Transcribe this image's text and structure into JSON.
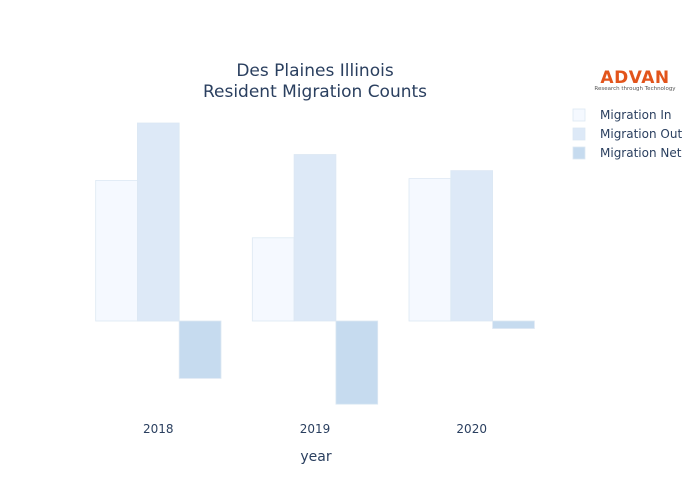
{
  "chart_data": {
    "type": "bar",
    "title_line1": "Des Plaines Illinois",
    "title_line2": "Resident Migration Counts",
    "xlabel": "year",
    "ylabel": "",
    "categories": [
      "2018",
      "2019",
      "2020"
    ],
    "series": [
      {
        "name": "Migration In",
        "color": "#f5f9ff",
        "values": [
          2450,
          1450,
          2480
        ]
      },
      {
        "name": "Migration Out",
        "color": "#dde9f7",
        "values": [
          3450,
          2900,
          2620
        ]
      },
      {
        "name": "Migration Net",
        "color": "#c6dbef",
        "values": [
          -1000,
          -1450,
          -130
        ]
      }
    ],
    "ylim": [
      -1550,
      3850
    ],
    "grid": false,
    "legend_position": "top-right"
  },
  "logo": {
    "name": "ADVAN",
    "tagline": "Research through Technology"
  }
}
